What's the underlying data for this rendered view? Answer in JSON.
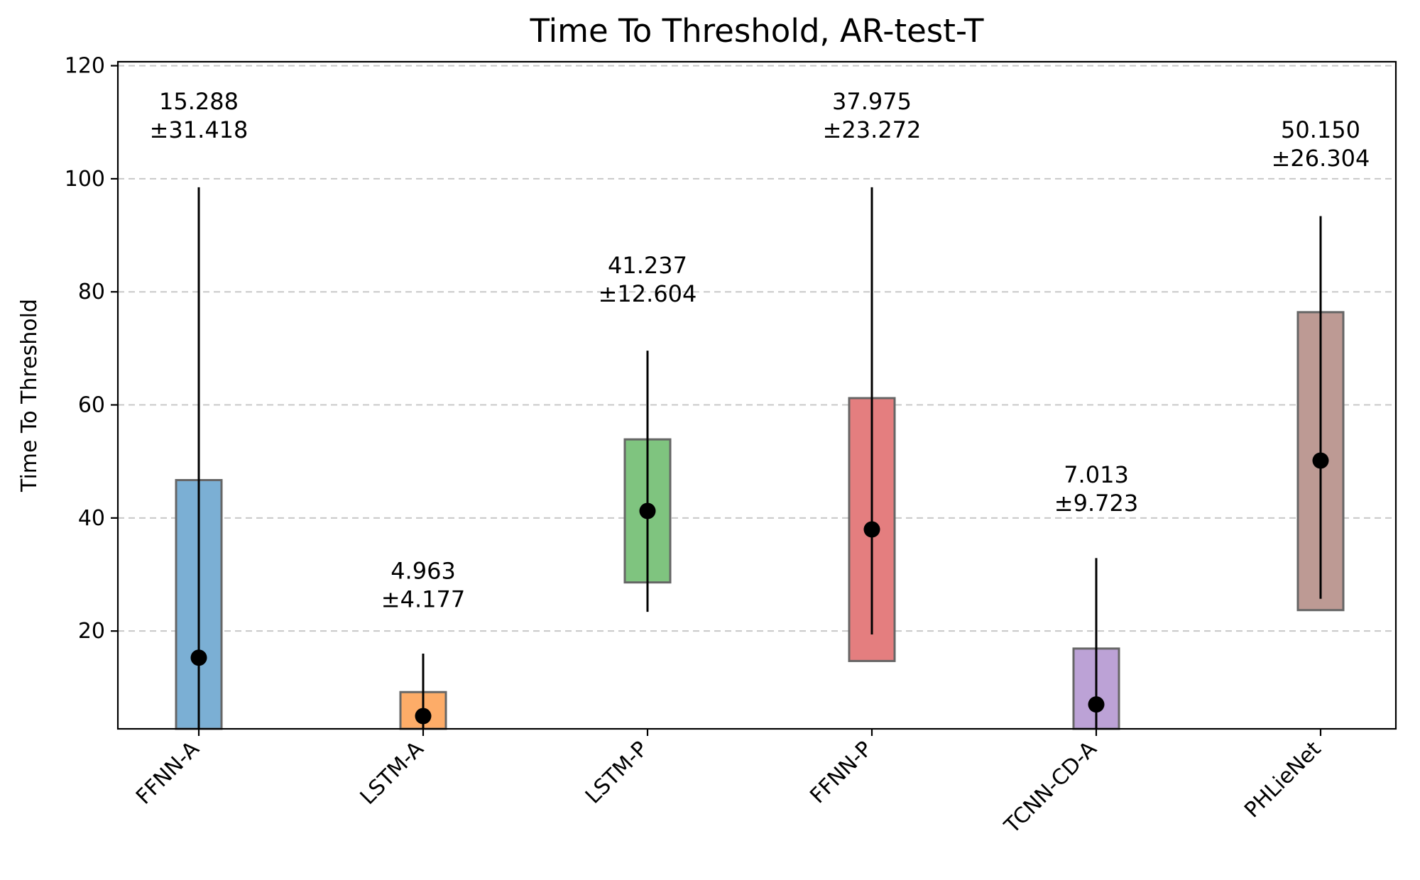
{
  "chart_data": {
    "type": "bar",
    "title": "Time To Threshold, AR-test-T",
    "xlabel": "",
    "ylabel": "Time To Threshold",
    "ylim": [
      2.7,
      120.7
    ],
    "yticks": [
      20,
      40,
      60,
      80,
      100,
      120
    ],
    "grid": "y-dashed",
    "categories": [
      "FFNN-A",
      "LSTM-A",
      "LSTM-P",
      "FFNN-P",
      "TCNN-CD-A",
      "PHLieNet"
    ],
    "series": [
      {
        "means": [
          15.288,
          4.963,
          41.237,
          37.975,
          7.013,
          50.15
        ],
        "stds": [
          31.418,
          4.177,
          12.604,
          23.272,
          9.723,
          26.304
        ],
        "box_low": [
          2.7,
          2.7,
          28.6,
          14.7,
          2.7,
          23.7
        ],
        "box_high": [
          46.7,
          9.2,
          53.9,
          61.2,
          16.9,
          76.4
        ],
        "whisker_low": [
          2.7,
          2.7,
          23.4,
          19.4,
          2.7,
          25.7
        ],
        "whisker_high": [
          98.5,
          16.0,
          69.6,
          98.5,
          32.9,
          93.4
        ]
      }
    ],
    "data_labels": [
      [
        "15.288",
        "±31.418"
      ],
      [
        "4.963",
        "±4.177"
      ],
      [
        "41.237",
        "±12.604"
      ],
      [
        "37.975",
        "±23.272"
      ],
      [
        "7.013",
        "±9.723"
      ],
      [
        "50.150",
        "±26.304"
      ]
    ],
    "label_values": [
      108,
      25,
      79,
      108,
      42,
      103
    ],
    "colors": [
      "#7bafd4",
      "#fdac68",
      "#7fc47f",
      "#e47e7f",
      "#bca2d6",
      "#bd9a94"
    ]
  }
}
